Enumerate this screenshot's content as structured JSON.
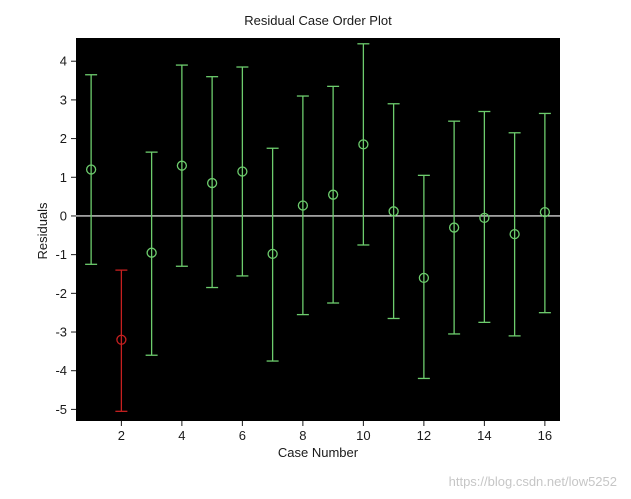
{
  "chart_data": {
    "type": "scatter",
    "title": "Residual Case Order Plot",
    "xlabel": "Case Number",
    "ylabel": "Residuals",
    "xlim": [
      0.5,
      16.5
    ],
    "ylim": [
      -5.3,
      4.6
    ],
    "x_ticks": [
      2,
      4,
      6,
      8,
      10,
      12,
      14,
      16
    ],
    "y_ticks": [
      -5,
      -4,
      -3,
      -2,
      -1,
      0,
      1,
      2,
      3,
      4
    ],
    "zero_line": 0,
    "grid": false,
    "plot_background": "#000000",
    "colors": {
      "normal": "#6dcc6d",
      "outlier": "#c62020",
      "zero_line": "#ffffff"
    },
    "points": [
      {
        "x": 1,
        "y": 1.2,
        "low": -1.25,
        "high": 3.65,
        "outlier": false
      },
      {
        "x": 2,
        "y": -3.2,
        "low": -5.05,
        "high": -1.4,
        "outlier": true
      },
      {
        "x": 3,
        "y": -0.95,
        "low": -3.6,
        "high": 1.65,
        "outlier": false
      },
      {
        "x": 4,
        "y": 1.3,
        "low": -1.3,
        "high": 3.9,
        "outlier": false
      },
      {
        "x": 5,
        "y": 0.85,
        "low": -1.85,
        "high": 3.6,
        "outlier": false
      },
      {
        "x": 6,
        "y": 1.15,
        "low": -1.55,
        "high": 3.85,
        "outlier": false
      },
      {
        "x": 7,
        "y": -0.98,
        "low": -3.75,
        "high": 1.75,
        "outlier": false
      },
      {
        "x": 8,
        "y": 0.27,
        "low": -2.55,
        "high": 3.1,
        "outlier": false
      },
      {
        "x": 9,
        "y": 0.55,
        "low": -2.25,
        "high": 3.35,
        "outlier": false
      },
      {
        "x": 10,
        "y": 1.85,
        "low": -0.75,
        "high": 4.45,
        "outlier": false
      },
      {
        "x": 11,
        "y": 0.12,
        "low": -2.65,
        "high": 2.9,
        "outlier": false
      },
      {
        "x": 12,
        "y": -1.6,
        "low": -4.2,
        "high": 1.05,
        "outlier": false
      },
      {
        "x": 13,
        "y": -0.3,
        "low": -3.05,
        "high": 2.45,
        "outlier": false
      },
      {
        "x": 14,
        "y": -0.05,
        "low": -2.75,
        "high": 2.7,
        "outlier": false
      },
      {
        "x": 15,
        "y": -0.47,
        "low": -3.1,
        "high": 2.15,
        "outlier": false
      },
      {
        "x": 16,
        "y": 0.1,
        "low": -2.5,
        "high": 2.65,
        "outlier": false
      }
    ]
  },
  "watermark": "https://blog.csdn.net/low5252"
}
